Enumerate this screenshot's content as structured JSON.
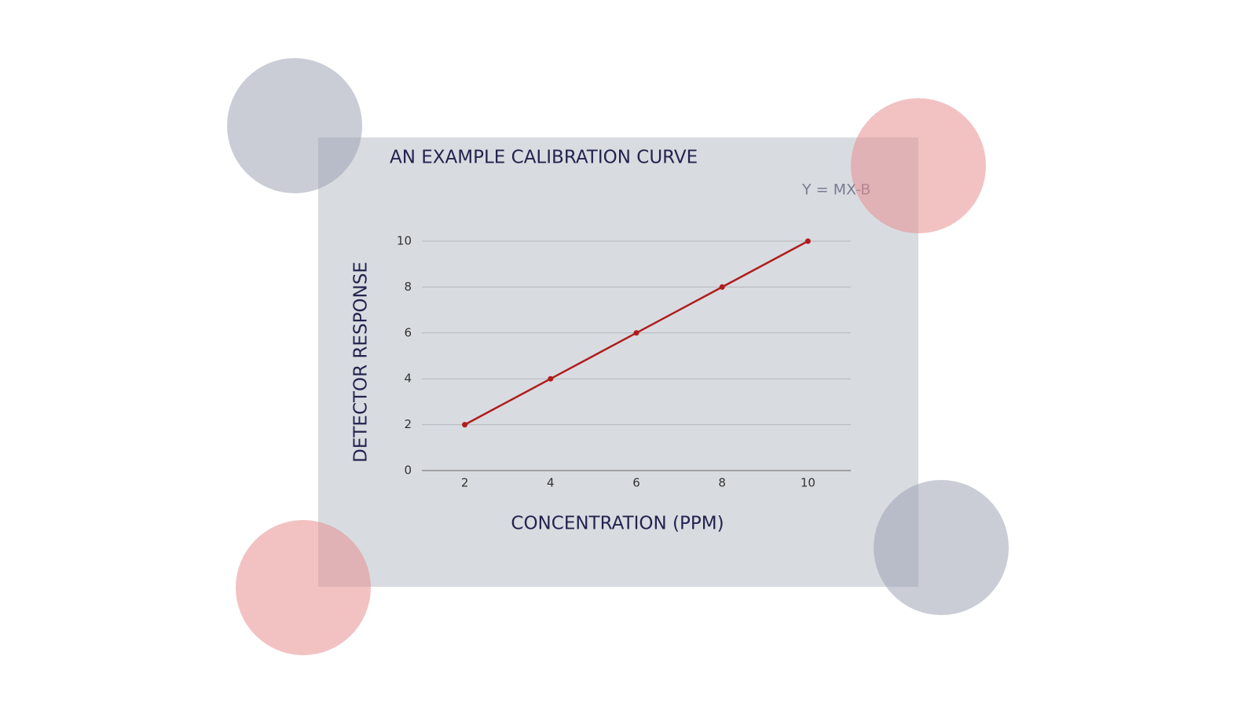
{
  "chart_data": {
    "type": "line",
    "title": "AN EXAMPLE CALIBRATION CURVE",
    "annotation": "Y = MX-B",
    "x_label": "CONCENTRATION (PPM)",
    "y_label": "DETECTOR RESPONSE",
    "categories": [
      "2",
      "4",
      "6",
      "8",
      "10"
    ],
    "series": [
      {
        "name": "Detector response",
        "color": "#b01c1c",
        "values": [
          2,
          4,
          6,
          8,
          10
        ]
      }
    ],
    "ylim": [
      0,
      10
    ],
    "yticks": [
      0,
      2,
      4,
      6,
      8,
      10
    ],
    "grid": true
  }
}
